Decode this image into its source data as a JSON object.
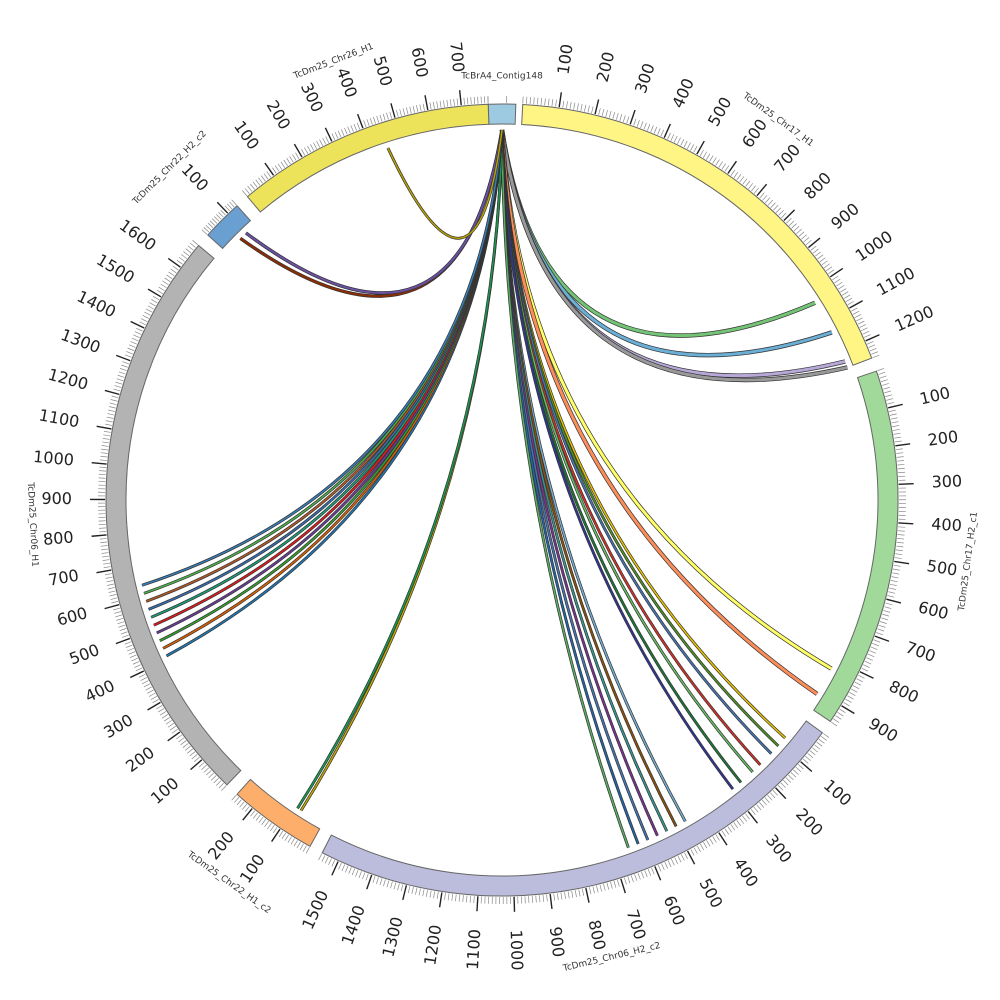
{
  "diagram": {
    "type": "circos",
    "segments": [
      {
        "name": "TcBrA4_Contig148",
        "length": 15,
        "start_deg": -2.0,
        "end_deg": 2.0,
        "color": "#9ecae1",
        "labels": []
      },
      {
        "name": "TcDm25_Chr17_H1",
        "length": 1250,
        "start_deg": 3.0,
        "end_deg": 69.0,
        "color": "#fff585",
        "labels": [
          100,
          200,
          300,
          400,
          500,
          600,
          700,
          800,
          900,
          1000,
          1100,
          1200
        ]
      },
      {
        "name": "TcDm25_Chr17_H2_c1",
        "length": 950,
        "start_deg": 71.0,
        "end_deg": 124.0,
        "color": "#a1d99b",
        "labels": [
          100,
          200,
          300,
          400,
          500,
          600,
          700,
          800,
          900
        ]
      },
      {
        "name": "TcDm25_Chr06_H2_c2",
        "length": 1550,
        "start_deg": 126.0,
        "end_deg": 207.0,
        "color": "#bcbddc",
        "labels": [
          100,
          200,
          300,
          400,
          500,
          600,
          700,
          800,
          900,
          1000,
          1100,
          1200,
          1300,
          1400,
          1500
        ]
      },
      {
        "name": "TcDm25_Chr22_H1_c2",
        "length": 260,
        "start_deg": 209.0,
        "end_deg": 222.0,
        "color": "#fdae6b",
        "labels": [
          100,
          200
        ]
      },
      {
        "name": "TcDm25_Chr06_H1",
        "length": 1680,
        "start_deg": 224.0,
        "end_deg": 310.0,
        "color": "#b3b3b3",
        "labels": [
          100,
          200,
          300,
          400,
          500,
          600,
          700,
          800,
          900,
          1000,
          1100,
          1200,
          1300,
          1400,
          1500,
          1600
        ]
      },
      {
        "name": "TcDm25_Chr22_H2_c2",
        "length": 140,
        "start_deg": 312.0,
        "end_deg": 318.0,
        "color": "#6a9fd2",
        "labels": [
          100
        ]
      },
      {
        "name": "TcDm25_Chr26_H1",
        "length": 780,
        "start_deg": 320.0,
        "end_deg": 358.0,
        "color": "#ede35a",
        "labels": [
          100,
          200,
          300,
          400,
          500,
          600,
          700
        ]
      }
    ],
    "links": [
      {
        "from": 0,
        "at": 0.5,
        "to": 1,
        "pos": 0.83,
        "color": "#74c476",
        "width": 3
      },
      {
        "from": 0,
        "at": 0.5,
        "to": 1,
        "pos": 0.91,
        "color": "#6baed6",
        "width": 3
      },
      {
        "from": 0,
        "at": 0.5,
        "to": 1,
        "pos": 0.985,
        "color": "#b7a8d8",
        "width": 3
      },
      {
        "from": 0,
        "at": 0.5,
        "to": 1,
        "pos": 1.0,
        "color": "#999999",
        "width": 3
      },
      {
        "from": 0,
        "at": 0.5,
        "to": 2,
        "pos": 0.87,
        "color": "#ffff66",
        "width": 3
      },
      {
        "from": 0,
        "at": 0.5,
        "to": 2,
        "pos": 0.955,
        "color": "#fc8d59",
        "width": 3
      },
      {
        "from": 0,
        "at": 0.5,
        "to": 3,
        "pos": 0.05,
        "color": "#e6c200",
        "width": 1.5
      },
      {
        "from": 0,
        "at": 0.5,
        "to": 3,
        "pos": 0.07,
        "color": "#4d9221",
        "width": 1.5
      },
      {
        "from": 0,
        "at": 0.5,
        "to": 3,
        "pos": 0.09,
        "color": "#4575b4",
        "width": 1.5
      },
      {
        "from": 0,
        "at": 0.5,
        "to": 3,
        "pos": 0.12,
        "color": "#d73027",
        "width": 1.5
      },
      {
        "from": 0,
        "at": 0.5,
        "to": 3,
        "pos": 0.14,
        "color": "#66bd63",
        "width": 1.5
      },
      {
        "from": 0,
        "at": 0.5,
        "to": 3,
        "pos": 0.17,
        "color": "#1b7837",
        "width": 1.5
      },
      {
        "from": 0,
        "at": 0.5,
        "to": 3,
        "pos": 0.19,
        "color": "#313695",
        "width": 1.5
      },
      {
        "from": 0,
        "at": 0.5,
        "to": 3,
        "pos": 0.3,
        "color": "#74add1",
        "width": 1.5
      },
      {
        "from": 0,
        "at": 0.5,
        "to": 3,
        "pos": 0.32,
        "color": "#8c510a",
        "width": 1.5
      },
      {
        "from": 0,
        "at": 0.5,
        "to": 3,
        "pos": 0.34,
        "color": "#35978f",
        "width": 1.5
      },
      {
        "from": 0,
        "at": 0.5,
        "to": 3,
        "pos": 0.36,
        "color": "#7b3294",
        "width": 1.5
      },
      {
        "from": 0,
        "at": 0.5,
        "to": 3,
        "pos": 0.38,
        "color": "#4575b4",
        "width": 1.5
      },
      {
        "from": 0,
        "at": 0.5,
        "to": 3,
        "pos": 0.4,
        "color": "#2166ac",
        "width": 1.5
      },
      {
        "from": 0,
        "at": 0.5,
        "to": 3,
        "pos": 0.42,
        "color": "#5aae61",
        "width": 1.5
      },
      {
        "from": 0,
        "at": 0.5,
        "to": 4,
        "pos": 0.3,
        "color": "#c2a500",
        "width": 1.5
      },
      {
        "from": 0,
        "at": 0.5,
        "to": 4,
        "pos": 0.35,
        "color": "#1a9850",
        "width": 1.5
      },
      {
        "from": 0,
        "at": 0.5,
        "to": 5,
        "pos": 0.245,
        "color": "#1f78b4",
        "width": 1.5
      },
      {
        "from": 0,
        "at": 0.5,
        "to": 5,
        "pos": 0.26,
        "color": "#d95f02",
        "width": 1.5
      },
      {
        "from": 0,
        "at": 0.5,
        "to": 5,
        "pos": 0.275,
        "color": "#33a02c",
        "width": 1.5
      },
      {
        "from": 0,
        "at": 0.5,
        "to": 5,
        "pos": 0.29,
        "color": "#6a3d9a",
        "width": 1.5
      },
      {
        "from": 0,
        "at": 0.5,
        "to": 5,
        "pos": 0.305,
        "color": "#e31a1c",
        "width": 1.5
      },
      {
        "from": 0,
        "at": 0.5,
        "to": 5,
        "pos": 0.32,
        "color": "#1b9e77",
        "width": 1.5
      },
      {
        "from": 0,
        "at": 0.5,
        "to": 5,
        "pos": 0.335,
        "color": "#386cb0",
        "width": 1.5
      },
      {
        "from": 0,
        "at": 0.5,
        "to": 5,
        "pos": 0.35,
        "color": "#b15928",
        "width": 1.5
      },
      {
        "from": 0,
        "at": 0.5,
        "to": 5,
        "pos": 0.365,
        "color": "#4daf4a",
        "width": 1.5
      },
      {
        "from": 0,
        "at": 0.5,
        "to": 5,
        "pos": 0.38,
        "color": "#377eb8",
        "width": 1.5
      },
      {
        "from": 0,
        "at": 0.5,
        "to": 6,
        "pos": 0.5,
        "color": "#8c2d04",
        "width": 2
      },
      {
        "from": 0,
        "at": 0.5,
        "to": 6,
        "pos": 0.7,
        "color": "#6a51a3",
        "width": 2
      },
      {
        "from": 0,
        "at": 0.5,
        "to": 7,
        "pos": 0.58,
        "color": "#b8a100",
        "width": 1.5
      }
    ]
  }
}
